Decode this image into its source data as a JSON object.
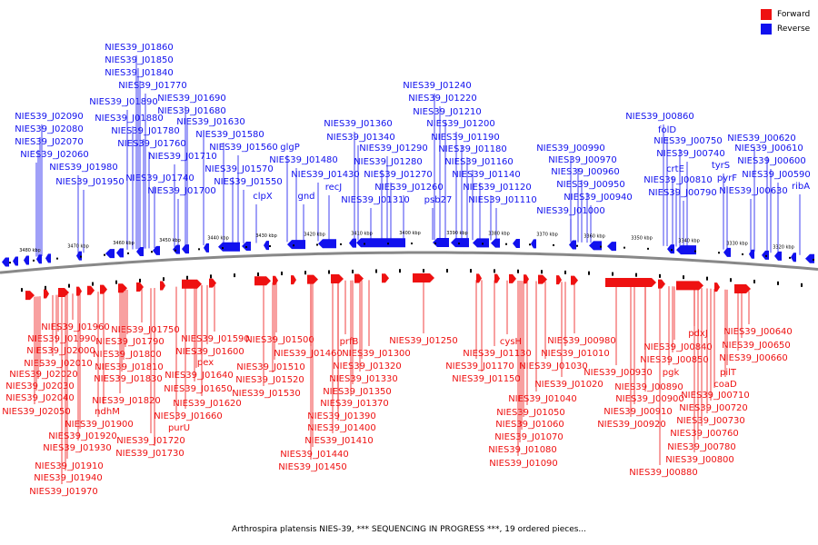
{
  "legend": {
    "forward_label": "Forward",
    "reverse_label": "Reverse",
    "forward_color": "#ee1111",
    "reverse_color": "#1111ee"
  },
  "caption": "Arthrospira platensis NIES-39, *** SEQUENCING IN PROGRESS ***, 19 ordered pieces...",
  "colors": {
    "backbone": "#888888",
    "tick": "#000000"
  },
  "scale_labels": [
    "3480 kbp",
    "3470 kbp",
    "3460 kbp",
    "3450 kbp",
    "3440 kbp",
    "3430 kbp",
    "3420 kbp",
    "3410 kbp",
    "3400 kbp",
    "3390 kbp",
    "3380 kbp",
    "3370 kbp",
    "3360 kbp",
    "3350 kbp",
    "3340 kbp",
    "3330 kbp",
    "3320 kbp"
  ],
  "reverse_labels": [
    "NIES39_J01860",
    "NIES39_J01850",
    "NIES39_J01840",
    "NIES39_J01770",
    "NIES39_J01690",
    "NIES39_J01890",
    "NIES39_J01680",
    "NIES39_J02090",
    "NIES39_J01880",
    "NIES39_J01630",
    "NIES39_J02080",
    "NIES39_J01780",
    "NIES39_J01580",
    "NIES39_J02070",
    "NIES39_J01760",
    "NIES39_J01560",
    "NIES39_J02060",
    "NIES39_J01710",
    "NIES39_J01980",
    "NIES39_J01570",
    "NIES39_J01950",
    "NIES39_J01740",
    "NIES39_J01550",
    "NIES39_J01700",
    "clpX",
    "glgP",
    "NIES39_J01480",
    "NIES39_J01430",
    "gnd",
    "recJ",
    "NIES39_J01360",
    "NIES39_J01340",
    "NIES39_J01290",
    "NIES39_J01280",
    "NIES39_J01270",
    "NIES39_J01310",
    "NIES39_J01260",
    "psb27",
    "NIES39_J01240",
    "NIES39_J01220",
    "NIES39_J01210",
    "NIES39_J01200",
    "NIES39_J01190",
    "NIES39_J01180",
    "NIES39_J01160",
    "NIES39_J01140",
    "NIES39_J01120",
    "NIES39_J01110",
    "NIES39_J00990",
    "NIES39_J00970",
    "NIES39_J00960",
    "NIES39_J00950",
    "NIES39_J00940",
    "NIES39_J01000",
    "NIES39_J00860",
    "folD",
    "NIES39_J00750",
    "NIES39_J00740",
    "crtE",
    "NIES39_J00810",
    "NIES39_J00790",
    "tyrS",
    "pyrF",
    "NIES39_J00630",
    "NIES39_J00620",
    "NIES39_J00610",
    "NIES39_J00600",
    "NIES39_J00590",
    "ribA"
  ],
  "forward_labels": [
    "NIES39_J01960",
    "NIES39_J01990",
    "NIES39_J02000",
    "NIES39_J02010",
    "NIES39_J02020",
    "NIES39_J02030",
    "NIES39_J02040",
    "NIES39_J02050",
    "NIES39_J01750",
    "NIES39_J01790",
    "NIES39_J01800",
    "NIES39_J01810",
    "NIES39_J01830",
    "NIES39_J01820",
    "ndhM",
    "NIES39_J01900",
    "NIES39_J01920",
    "NIES39_J01930",
    "NIES39_J01910",
    "NIES39_J01940",
    "NIES39_J01970",
    "NIES39_J01590",
    "NIES39_J01600",
    "pex",
    "NIES39_J01640",
    "NIES39_J01650",
    "NIES39_J01620",
    "NIES39_J01660",
    "purU",
    "NIES39_J01720",
    "NIES39_J01730",
    "NIES39_J01500",
    "NIES39_J01460",
    "NIES39_J01510",
    "NIES39_J01520",
    "NIES39_J01530",
    "prfB",
    "NIES39_J01300",
    "NIES39_J01320",
    "NIES39_J01330",
    "NIES39_J01350",
    "NIES39_J01370",
    "NIES39_J01390",
    "NIES39_J01400",
    "NIES39_J01410",
    "NIES39_J01440",
    "NIES39_J01450",
    "NIES39_J01250",
    "cysH",
    "NIES39_J01130",
    "NIES39_J01170",
    "NIES39_J01150",
    "NIES39_J01030",
    "NIES39_J01010",
    "NIES39_J00980",
    "NIES39_J01020",
    "NIES39_J01040",
    "NIES39_J01050",
    "NIES39_J01060",
    "NIES39_J01070",
    "NIES39_J01080",
    "NIES39_J01090",
    "NIES39_J00930",
    "NIES39_J00890",
    "NIES39_J00900",
    "NIES39_J00910",
    "NIES39_J00920",
    "NIES39_J00880",
    "pdxJ",
    "NIES39_J00840",
    "NIES39_J00850",
    "pgk",
    "NIES39_J00640",
    "NIES39_J00650",
    "NIES39_J00660",
    "pilT",
    "coaD",
    "NIES39_J00710",
    "NIES39_J00720",
    "NIES39_J00730",
    "NIES39_J00760",
    "NIES39_J00780",
    "NIES39_J00800"
  ]
}
